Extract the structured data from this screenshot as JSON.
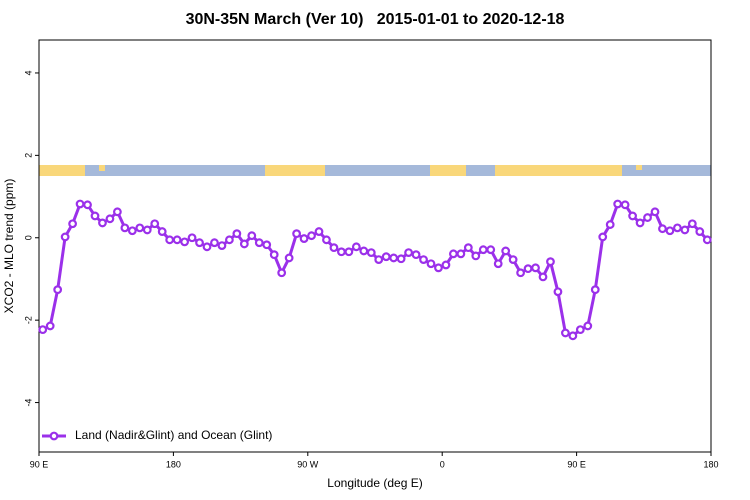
{
  "chart_data": {
    "type": "line",
    "title": "30N-35N March (Ver 10)   2015-01-01 to 2020-12-18",
    "x_label": "Longitude (deg E)",
    "y_label": "XCO2 - MLO trend (ppm)",
    "xlim": [
      90,
      540
    ],
    "ylim": [
      -5.2,
      4.8
    ],
    "xticks": [
      {
        "value": 90,
        "label": "90 E"
      },
      180,
      {
        "value": 270,
        "label": "90 W"
      },
      {
        "value": 360,
        "label": "0"
      },
      {
        "value": 450,
        "label": "90 E"
      },
      {
        "value": 540,
        "label": "180"
      }
    ],
    "yticks": [
      4,
      2,
      0,
      -2,
      -4
    ],
    "legend": "bottom-left",
    "x": [
      92.5,
      97.5,
      102.5,
      107.5,
      112.5,
      117.5,
      122.5,
      127.5,
      132.5,
      137.5,
      142.5,
      147.5,
      152.5,
      157.5,
      162.5,
      167.5,
      172.5,
      177.5,
      182.5,
      187.5,
      192.5,
      197.5,
      202.5,
      207.5,
      212.5,
      217.5,
      222.5,
      227.5,
      232.5,
      237.5,
      242.5,
      247.5,
      252.5,
      257.5,
      262.5,
      267.5,
      272.5,
      277.5,
      282.5,
      287.5,
      292.5,
      297.5,
      302.5,
      307.5,
      312.5,
      317.5,
      322.5,
      327.5,
      332.5,
      337.5,
      342.5,
      347.5,
      352.5,
      357.5,
      362.5,
      367.5,
      372.5,
      377.5,
      382.5,
      387.5,
      392.5,
      397.5,
      402.5,
      407.5,
      412.5,
      417.5,
      422.5,
      427.5,
      432.5,
      437.5,
      442.5,
      447.5,
      452.5,
      457.5,
      462.5,
      467.5,
      472.5,
      477.5,
      482.5,
      487.5,
      492.5,
      497.5,
      502.5,
      507.5,
      512.5,
      517.5,
      522.5,
      527.5,
      532.5,
      537.5
    ],
    "series": [
      {
        "name": "Land (Nadir&Glint) and Ocean (Glint)",
        "color": "#9b30ea",
        "values": [
          -2.23,
          -2.14,
          -1.26,
          0.02,
          0.34,
          0.82,
          0.8,
          0.53,
          0.36,
          0.46,
          0.63,
          0.24,
          0.17,
          0.24,
          0.19,
          0.34,
          0.15,
          -0.05,
          -0.05,
          -0.1,
          0,
          -0.12,
          -0.22,
          -0.12,
          -0.19,
          -0.05,
          0.1,
          -0.15,
          0.05,
          -0.12,
          -0.17,
          -0.41,
          -0.85,
          -0.49,
          0.1,
          -0.02,
          0.05,
          0.15,
          -0.05,
          -0.24,
          -0.34,
          -0.34,
          -0.22,
          -0.32,
          -0.36,
          -0.53,
          -0.46,
          -0.49,
          -0.51,
          -0.36,
          -0.41,
          -0.53,
          -0.63,
          -0.73,
          -0.66,
          -0.39,
          -0.39,
          -0.24,
          -0.44,
          -0.29,
          -0.29,
          -0.63,
          -0.32,
          -0.53,
          -0.85,
          -0.75,
          -0.73,
          -0.95,
          -0.58,
          -1.31,
          -2.31,
          -2.38,
          -2.23,
          -2.14,
          -1.26,
          0.02,
          0.32,
          0.82,
          0.8,
          0.53,
          0.36,
          0.49,
          0.63,
          0.22,
          0.17,
          0.24,
          0.19,
          0.34,
          0.15,
          -0.05
        ]
      }
    ]
  }
}
